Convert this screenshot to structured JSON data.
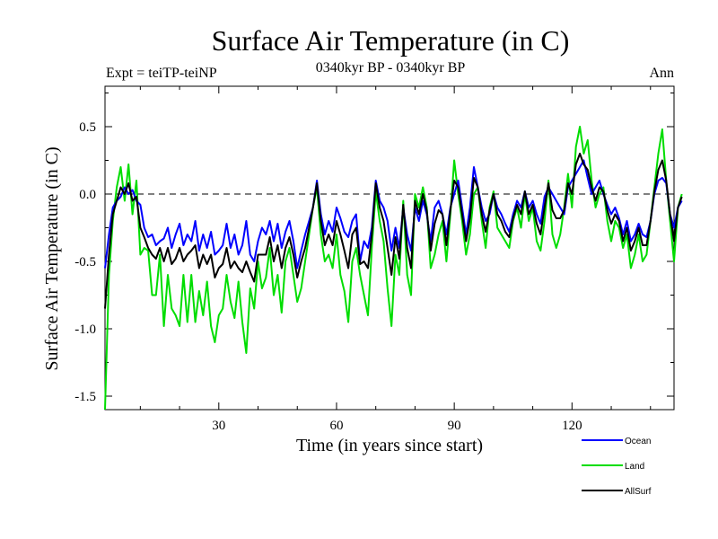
{
  "chart_data": {
    "type": "line",
    "title": "Surface Air Temperature (in C)",
    "subtitle": "0340kyr BP - 0340kyr BP",
    "expt_label": "Expt = teiTP-teiNP",
    "season_label": "Ann",
    "xlabel": "Time (in years since start)",
    "ylabel": "Surface Air Temperature (in C)",
    "xlim": [
      1,
      146
    ],
    "ylim": [
      -1.6,
      0.8
    ],
    "xticks": [
      30,
      60,
      90,
      120
    ],
    "xtick_labels": [
      "30",
      "60",
      "90",
      "120"
    ],
    "yticks": [
      -1.5,
      -1.0,
      -0.5,
      0.0,
      0.5
    ],
    "ytick_labels": [
      "-1.5",
      "-1.0",
      "-0.5",
      "0.0",
      "0.5"
    ],
    "zero_line": true,
    "legend_position": "bottom-right",
    "series": [
      {
        "name": "Ocean",
        "color": "#0000ff",
        "values": [
          -0.55,
          -0.3,
          -0.1,
          -0.05,
          -0.02,
          0.05,
          0.0,
          0.03,
          -0.05,
          -0.08,
          -0.25,
          -0.32,
          -0.3,
          -0.38,
          -0.35,
          -0.33,
          -0.25,
          -0.4,
          -0.3,
          -0.22,
          -0.38,
          -0.3,
          -0.35,
          -0.2,
          -0.42,
          -0.3,
          -0.4,
          -0.28,
          -0.45,
          -0.42,
          -0.38,
          -0.22,
          -0.4,
          -0.3,
          -0.45,
          -0.38,
          -0.2,
          -0.45,
          -0.5,
          -0.35,
          -0.25,
          -0.3,
          -0.2,
          -0.35,
          -0.22,
          -0.4,
          -0.28,
          -0.2,
          -0.35,
          -0.55,
          -0.42,
          -0.3,
          -0.2,
          -0.1,
          0.1,
          -0.15,
          -0.3,
          -0.2,
          -0.28,
          -0.1,
          -0.18,
          -0.28,
          -0.32,
          -0.2,
          -0.15,
          -0.5,
          -0.35,
          -0.4,
          -0.25,
          0.1,
          -0.05,
          -0.1,
          -0.2,
          -0.42,
          -0.25,
          -0.4,
          -0.1,
          -0.3,
          -0.42,
          -0.1,
          -0.2,
          -0.05,
          -0.15,
          -0.35,
          -0.1,
          -0.05,
          -0.15,
          -0.3,
          -0.1,
          0.0,
          0.1,
          -0.1,
          -0.3,
          -0.1,
          0.2,
          0.05,
          -0.1,
          -0.2,
          -0.15,
          0.0,
          -0.1,
          -0.15,
          -0.22,
          -0.28,
          -0.15,
          -0.05,
          -0.1,
          0.02,
          -0.1,
          -0.05,
          -0.15,
          -0.22,
          -0.02,
          0.05,
          0.0,
          -0.05,
          -0.1,
          -0.15,
          0.05,
          0.1,
          0.15,
          0.2,
          0.25,
          0.12,
          0.0,
          0.05,
          0.1,
          0.0,
          -0.08,
          -0.15,
          -0.1,
          -0.18,
          -0.3,
          -0.2,
          -0.35,
          -0.3,
          -0.22,
          -0.3,
          -0.32,
          -0.2,
          0.0,
          0.1,
          0.12,
          0.08,
          -0.15,
          -0.25,
          -0.1,
          -0.05
        ]
      },
      {
        "name": "Land",
        "color": "#00dd00",
        "values": [
          -1.6,
          -0.6,
          -0.2,
          0.05,
          0.2,
          -0.05,
          0.22,
          -0.15,
          0.1,
          -0.45,
          -0.4,
          -0.42,
          -0.75,
          -0.75,
          -0.45,
          -0.98,
          -0.6,
          -0.85,
          -0.9,
          -0.98,
          -0.6,
          -0.95,
          -0.6,
          -0.95,
          -0.72,
          -0.9,
          -0.65,
          -0.98,
          -1.1,
          -0.9,
          -0.85,
          -0.6,
          -0.8,
          -0.92,
          -0.65,
          -0.95,
          -1.18,
          -0.7,
          -0.85,
          -0.5,
          -0.7,
          -0.62,
          -0.4,
          -0.75,
          -0.6,
          -0.88,
          -0.5,
          -0.4,
          -0.6,
          -0.8,
          -0.7,
          -0.5,
          -0.3,
          -0.1,
          0.05,
          -0.3,
          -0.5,
          -0.45,
          -0.55,
          -0.3,
          -0.6,
          -0.72,
          -0.95,
          -0.5,
          -0.4,
          -0.6,
          -0.75,
          -0.9,
          -0.4,
          0.02,
          -0.2,
          -0.35,
          -0.7,
          -0.98,
          -0.45,
          -0.6,
          -0.05,
          -0.6,
          -0.75,
          0.0,
          -0.1,
          0.05,
          -0.1,
          -0.55,
          -0.45,
          -0.3,
          -0.2,
          -0.5,
          -0.15,
          0.25,
          0.0,
          -0.2,
          -0.45,
          -0.3,
          0.0,
          0.05,
          -0.2,
          -0.4,
          -0.1,
          0.02,
          -0.25,
          -0.3,
          -0.35,
          -0.4,
          -0.2,
          -0.1,
          -0.25,
          0.0,
          -0.2,
          -0.1,
          -0.35,
          -0.42,
          -0.2,
          0.1,
          -0.3,
          -0.4,
          -0.3,
          -0.1,
          0.15,
          -0.1,
          0.35,
          0.5,
          0.3,
          0.4,
          0.1,
          -0.1,
          0.0,
          0.05,
          -0.2,
          -0.35,
          -0.2,
          -0.25,
          -0.4,
          -0.3,
          -0.55,
          -0.45,
          -0.3,
          -0.5,
          -0.45,
          -0.2,
          0.05,
          0.3,
          0.48,
          0.1,
          -0.2,
          -0.5,
          -0.1,
          0.0
        ]
      },
      {
        "name": "AllSurf",
        "color": "#000000",
        "values": [
          -0.85,
          -0.45,
          -0.15,
          -0.05,
          0.05,
          0.0,
          0.08,
          -0.05,
          -0.02,
          -0.25,
          -0.32,
          -0.4,
          -0.45,
          -0.48,
          -0.4,
          -0.5,
          -0.4,
          -0.52,
          -0.48,
          -0.4,
          -0.5,
          -0.45,
          -0.42,
          -0.38,
          -0.55,
          -0.45,
          -0.52,
          -0.45,
          -0.62,
          -0.55,
          -0.52,
          -0.4,
          -0.55,
          -0.5,
          -0.55,
          -0.58,
          -0.5,
          -0.58,
          -0.65,
          -0.45,
          -0.45,
          -0.45,
          -0.32,
          -0.5,
          -0.38,
          -0.55,
          -0.4,
          -0.32,
          -0.45,
          -0.62,
          -0.5,
          -0.4,
          -0.25,
          -0.1,
          0.08,
          -0.2,
          -0.38,
          -0.3,
          -0.38,
          -0.2,
          -0.3,
          -0.42,
          -0.55,
          -0.3,
          -0.25,
          -0.52,
          -0.5,
          -0.55,
          -0.3,
          0.08,
          -0.1,
          -0.2,
          -0.4,
          -0.6,
          -0.32,
          -0.48,
          -0.08,
          -0.4,
          -0.55,
          -0.05,
          -0.15,
          0.0,
          -0.12,
          -0.42,
          -0.22,
          -0.12,
          -0.15,
          -0.38,
          -0.12,
          0.1,
          0.05,
          -0.15,
          -0.35,
          -0.18,
          0.12,
          0.05,
          -0.15,
          -0.28,
          -0.12,
          0.0,
          -0.15,
          -0.2,
          -0.28,
          -0.32,
          -0.18,
          -0.08,
          -0.15,
          0.02,
          -0.15,
          -0.08,
          -0.22,
          -0.3,
          -0.1,
          0.08,
          -0.12,
          -0.18,
          -0.18,
          -0.12,
          0.08,
          0.0,
          0.22,
          0.3,
          0.22,
          0.18,
          0.05,
          -0.05,
          0.05,
          0.02,
          -0.12,
          -0.22,
          -0.15,
          -0.2,
          -0.35,
          -0.25,
          -0.42,
          -0.35,
          -0.25,
          -0.38,
          -0.38,
          -0.2,
          0.02,
          0.18,
          0.25,
          0.1,
          -0.15,
          -0.35,
          -0.1,
          -0.02
        ]
      }
    ]
  }
}
